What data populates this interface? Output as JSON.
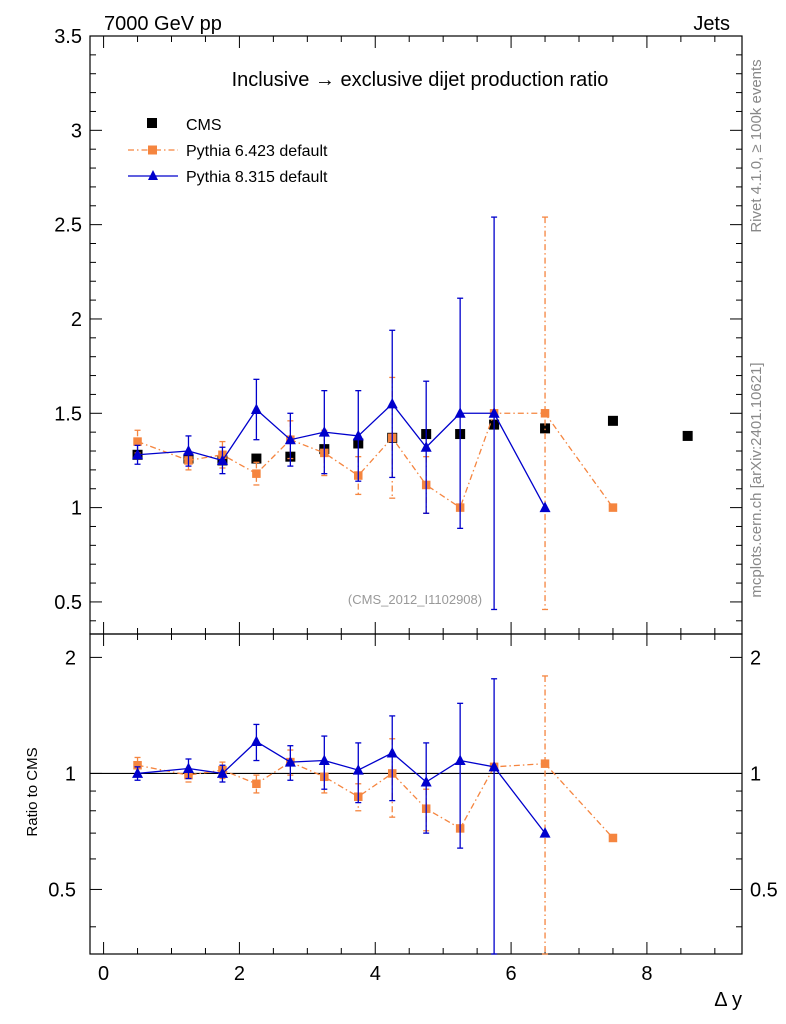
{
  "header": {
    "left": "7000 GeV pp",
    "right": "Jets"
  },
  "side_labels": {
    "rivet": "Rivet 4.1.0, ≥ 100k events",
    "mcplots": "mcplots.cern.ch [arXiv:2401.10621]"
  },
  "chart_data": [
    {
      "panel": "main",
      "type": "scatter",
      "title": "Inclusive → exclusive dijet production ratio",
      "watermark": "(CMS_2012_I1102908)",
      "xlabel": "Δ y",
      "ylabel": "",
      "xlim": [
        -0.2,
        9.4
      ],
      "ylim": [
        0.33,
        3.5
      ],
      "yticks": [
        0.5,
        1,
        1.5,
        2,
        2.5,
        3,
        3.5
      ],
      "ytick_labels": [
        "0.5",
        "1",
        "1.5",
        "2",
        "2.5",
        "3",
        "3.5"
      ],
      "legend_position": "top-left",
      "series": [
        {
          "name": "CMS",
          "color": "#000000",
          "marker": "square",
          "line": "none",
          "x": [
            0.5,
            1.25,
            1.75,
            2.25,
            2.75,
            3.25,
            3.75,
            4.25,
            4.75,
            5.25,
            5.75,
            6.5,
            7.5,
            8.6
          ],
          "y": [
            1.28,
            1.26,
            1.25,
            1.26,
            1.27,
            1.31,
            1.34,
            1.37,
            1.39,
            1.39,
            1.44,
            1.42,
            1.46,
            1.38
          ],
          "yerr": [
            0.01,
            0.01,
            0.01,
            0.01,
            0.01,
            0.01,
            0.01,
            0.01,
            0.01,
            0.01,
            0.01,
            0.01,
            0.01,
            0.01
          ]
        },
        {
          "name": "Pythia 6.423 default",
          "color": "#f5853f",
          "marker": "square",
          "line": "dash-dot",
          "x": [
            0.5,
            1.25,
            1.75,
            2.25,
            2.75,
            3.25,
            3.75,
            4.25,
            4.75,
            5.25,
            5.75,
            6.5,
            7.5
          ],
          "y": [
            1.35,
            1.25,
            1.28,
            1.18,
            1.36,
            1.29,
            1.17,
            1.37,
            1.12,
            1.0,
            1.5,
            1.5,
            1.0
          ],
          "yerr": [
            0.06,
            0.05,
            0.07,
            0.06,
            0.1,
            0.12,
            0.1,
            0.32,
            0.15,
            0.0,
            0.0,
            1.04,
            0.0
          ]
        },
        {
          "name": "Pythia 8.315 default",
          "color": "#0000cc",
          "marker": "triangle",
          "line": "solid",
          "x": [
            0.5,
            1.25,
            1.75,
            2.25,
            2.75,
            3.25,
            3.75,
            4.25,
            4.75,
            5.25,
            5.75,
            6.5
          ],
          "y": [
            1.28,
            1.3,
            1.25,
            1.52,
            1.36,
            1.4,
            1.38,
            1.55,
            1.32,
            1.5,
            1.5,
            1.0
          ],
          "yerr": [
            0.05,
            0.08,
            0.07,
            0.16,
            0.14,
            0.22,
            0.24,
            0.39,
            0.35,
            0.61,
            1.04,
            0.0
          ]
        }
      ]
    },
    {
      "panel": "ratio",
      "type": "scatter",
      "xlabel": "Δ y",
      "ylabel": "Ratio to CMS",
      "xlim": [
        -0.2,
        9.4
      ],
      "ylim": [
        0.34,
        2.3
      ],
      "yticks": [
        0.5,
        1,
        2
      ],
      "ytick_labels": [
        "0.5",
        "1",
        "2"
      ],
      "xticks": [
        0,
        2,
        4,
        6,
        8
      ],
      "xtick_labels": [
        "0",
        "2",
        "4",
        "6",
        "8"
      ],
      "reference_line": 1,
      "series": [
        {
          "name": "Pythia 6.423 default",
          "color": "#f5853f",
          "marker": "square",
          "line": "dash-dot",
          "x": [
            0.5,
            1.25,
            1.75,
            2.25,
            2.75,
            3.25,
            3.75,
            4.25,
            4.75,
            5.25,
            5.75,
            6.5,
            7.5
          ],
          "y": [
            1.05,
            0.99,
            1.02,
            0.94,
            1.07,
            0.98,
            0.87,
            1.0,
            0.81,
            0.72,
            1.04,
            1.06,
            0.68
          ],
          "yerr": [
            0.05,
            0.04,
            0.05,
            0.05,
            0.08,
            0.09,
            0.07,
            0.23,
            0.1,
            0.0,
            0.0,
            0.73,
            0.0
          ]
        },
        {
          "name": "Pythia 8.315 default",
          "color": "#0000cc",
          "marker": "triangle",
          "line": "solid",
          "x": [
            0.5,
            1.25,
            1.75,
            2.25,
            2.75,
            3.25,
            3.75,
            4.25,
            4.75,
            5.25,
            5.75,
            6.5
          ],
          "y": [
            1.0,
            1.03,
            1.0,
            1.21,
            1.07,
            1.08,
            1.02,
            1.13,
            0.95,
            1.08,
            1.04,
            0.7
          ],
          "yerr": [
            0.04,
            0.06,
            0.05,
            0.13,
            0.11,
            0.17,
            0.18,
            0.28,
            0.25,
            0.44,
            0.72,
            0.0
          ]
        }
      ]
    }
  ]
}
